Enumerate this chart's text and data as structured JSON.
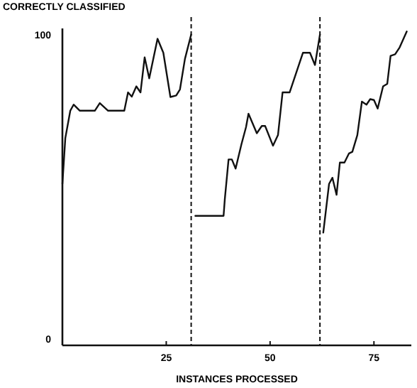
{
  "chart_data": {
    "type": "line",
    "xlabel": "INSTANCES PROCESSED",
    "ylabel": "CORRECTLY CLASSIFIED",
    "xlim": [
      0,
      84
    ],
    "ylim": [
      -2,
      102
    ],
    "xticks": [
      25,
      50,
      75
    ],
    "yticks": [
      0,
      100
    ],
    "grid": false,
    "marker": "none",
    "line_style": "solid",
    "series": [
      {
        "color": "#111111",
        "x": [
          0,
          0.7,
          1.9,
          2.7,
          4.2,
          7.8,
          9,
          11,
          14.9,
          15.8,
          16.7,
          17.8,
          18.8,
          19.8,
          20.9,
          22.9,
          24.3,
          26,
          27.4,
          28.3,
          29.5,
          31
        ],
        "values": [
          51,
          66,
          75,
          77,
          75,
          75,
          77.5,
          75,
          75,
          81,
          79.6,
          83,
          81,
          92.5,
          85.6,
          98.6,
          94,
          79.5,
          80,
          82,
          92,
          100
        ]
      },
      {
        "color": "#111111",
        "x": [
          32,
          38.8,
          39.1,
          40,
          40.8,
          41.7,
          43.1,
          44.2,
          44.8,
          46.8,
          48,
          48.8,
          50.7,
          51.9,
          53,
          54.7,
          57.9,
          59.6,
          60.8,
          62
        ],
        "values": [
          40.5,
          40.5,
          46,
          59,
          59,
          56,
          64,
          69.6,
          74,
          67.6,
          70,
          70,
          63.5,
          67,
          81,
          81,
          94,
          94,
          90,
          100
        ]
      },
      {
        "color": "#111111",
        "x": [
          62.8,
          64.2,
          65,
          66,
          66.8,
          67.9,
          69,
          69.8,
          71,
          72.1,
          73.2,
          74.1,
          75,
          75.9,
          77.2,
          78.2,
          79,
          80.1,
          81.2,
          82.9
        ],
        "values": [
          35,
          51,
          53,
          47.4,
          58,
          58,
          61,
          61.5,
          67,
          78,
          77,
          78.8,
          78.5,
          75.7,
          83,
          83.8,
          93,
          93.5,
          95.8,
          101
        ]
      }
    ],
    "ref_lines": [
      {
        "axis": "x",
        "value": 31,
        "color": "#111111",
        "line_style": "dashed"
      },
      {
        "axis": "x",
        "value": 62,
        "color": "#111111",
        "line_style": "dashed"
      }
    ]
  }
}
